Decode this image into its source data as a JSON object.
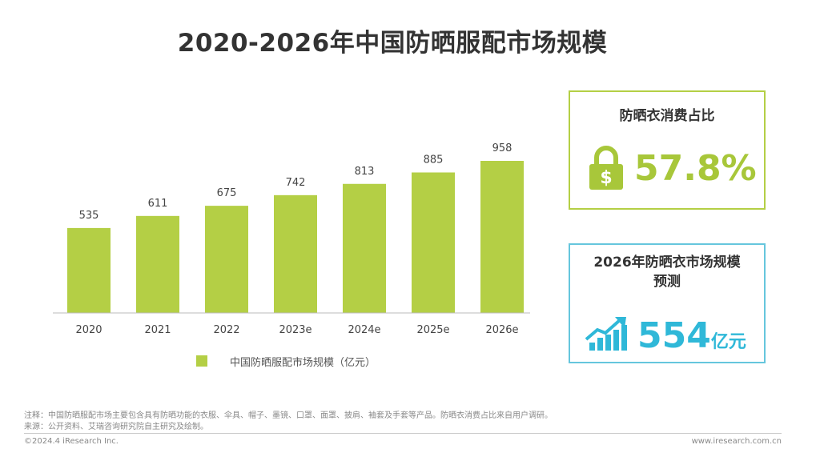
{
  "title": "2020-2026年中国防晒服配市场规模",
  "chart_data": {
    "type": "bar",
    "categories": [
      "2020",
      "2021",
      "2022",
      "2023e",
      "2024e",
      "2025e",
      "2026e"
    ],
    "series": [
      {
        "name": "中国防晒服配市场规模（亿元）",
        "values": [
          535,
          611,
          675,
          742,
          813,
          885,
          958
        ]
      }
    ],
    "ylim": [
      0,
      1000
    ],
    "grid": false,
    "legend_position": "bottom",
    "bar_color": "#b4cf45"
  },
  "legend": {
    "label": "中国防晒服配市场规模（亿元）"
  },
  "card_share": {
    "title": "防晒衣消费占比",
    "value": "57.8%",
    "icon": "lock-dollar-icon",
    "color": "#a8c73a"
  },
  "card_forecast": {
    "title_line1": "2026年防晒衣市场规模",
    "title_line2": "预测",
    "value": "554",
    "unit": "亿元",
    "icon": "growth-chart-icon",
    "color": "#2fb8d8"
  },
  "notes": {
    "line1": "注释：中国防晒服配市场主要包含具有防晒功能的衣服、伞具、帽子、墨镜、口罩、面罩、披肩、袖套及手套等产品。防晒衣消费占比来自用户调研。",
    "line2": "来源：公开资料、艾瑞咨询研究院自主研究及绘制。"
  },
  "footer": {
    "copyright": "©2024.4 iResearch Inc.",
    "website": "www.iresearch.com.cn"
  }
}
